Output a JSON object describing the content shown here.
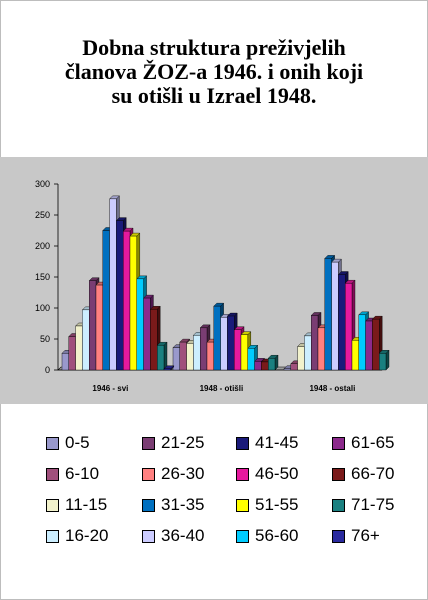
{
  "title_lines": [
    "Dobna struktura preživjelih",
    "članova ŽOZ-a 1946. i onih koji",
    "su otišli u Izrael 1948."
  ],
  "chart_data": {
    "type": "bar",
    "categories": [
      "1946 - svi",
      "1948 - otišli",
      "1948 - ostali"
    ],
    "ylim": [
      0,
      300
    ],
    "yticks": [
      0,
      50,
      100,
      150,
      200,
      250,
      300
    ],
    "grid": false,
    "legend_position": "bottom",
    "series": [
      {
        "name": "0-5",
        "color": "#9999cc",
        "values": [
          27,
          36,
          2
        ]
      },
      {
        "name": "6-10",
        "color": "#a0507c",
        "values": [
          54,
          45,
          10
        ]
      },
      {
        "name": "11-15",
        "color": "#f2f2cc",
        "values": [
          71,
          43,
          38
        ]
      },
      {
        "name": "16-20",
        "color": "#cceeff",
        "values": [
          97,
          56,
          55
        ]
      },
      {
        "name": "21-25",
        "color": "#7a3d73",
        "values": [
          144,
          68,
          88
        ]
      },
      {
        "name": "26-30",
        "color": "#ff8080",
        "values": [
          137,
          45,
          68
        ]
      },
      {
        "name": "31-35",
        "color": "#0070c0",
        "values": [
          225,
          103,
          180
        ]
      },
      {
        "name": "36-40",
        "color": "#ccccff",
        "values": [
          276,
          85,
          174
        ]
      },
      {
        "name": "41-45",
        "color": "#1a1a7a",
        "values": [
          241,
          87,
          154
        ]
      },
      {
        "name": "46-50",
        "color": "#e6199e",
        "values": [
          224,
          65,
          140
        ]
      },
      {
        "name": "51-55",
        "color": "#ffff00",
        "values": [
          216,
          57,
          48
        ]
      },
      {
        "name": "56-60",
        "color": "#00ccff",
        "values": [
          147,
          35,
          89
        ]
      },
      {
        "name": "61-65",
        "color": "#8c2a8c",
        "values": [
          116,
          14,
          79
        ]
      },
      {
        "name": "66-70",
        "color": "#7a1a1a",
        "values": [
          98,
          13,
          82
        ]
      },
      {
        "name": "71-75",
        "color": "#1a8080",
        "values": [
          40,
          19,
          27
        ]
      },
      {
        "name": "76+",
        "color": "#2a2a9e",
        "values": [
          2,
          0,
          0
        ]
      }
    ]
  }
}
